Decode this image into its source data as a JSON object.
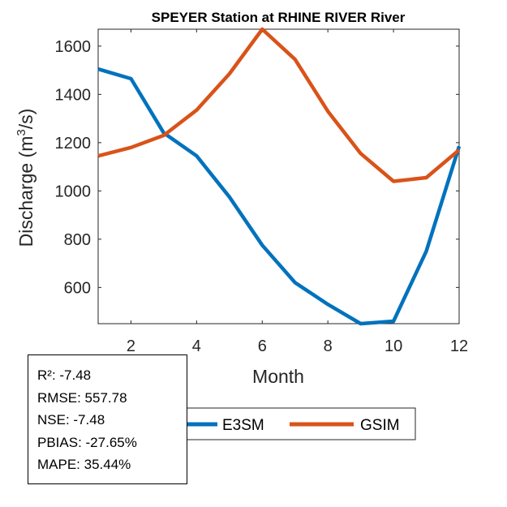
{
  "chart_data": {
    "type": "line",
    "title": "SPEYER  Station at  RHINE RIVER  River",
    "xlabel": "Month",
    "ylabel": "Discharge (m",
    "ylabel_sup": "3",
    "ylabel_tail": "/s)",
    "xlim": [
      1,
      12
    ],
    "ylim": [
      450,
      1670
    ],
    "xticks": [
      2,
      4,
      6,
      8,
      10,
      12
    ],
    "yticks": [
      600,
      800,
      1000,
      1200,
      1400,
      1600
    ],
    "x": [
      1,
      2,
      3,
      4,
      5,
      6,
      7,
      8,
      9,
      10,
      11,
      12
    ],
    "series": [
      {
        "name": "E3SM",
        "color": "#0072BD",
        "values": [
          1505,
          1465,
          1240,
          1145,
          975,
          775,
          620,
          530,
          450,
          460,
          750,
          1185
        ]
      },
      {
        "name": "GSIM",
        "color": "#D95319",
        "values": [
          1145,
          1180,
          1230,
          1335,
          1485,
          1670,
          1545,
          1330,
          1155,
          1040,
          1055,
          1170
        ]
      }
    ],
    "legend": [
      "E3SM",
      "GSIM"
    ],
    "legend_position": "bottom-center"
  },
  "stats": {
    "r2": "R²: -7.48",
    "rmse": "RMSE: 557.78",
    "nse": "NSE: -7.48",
    "pbias": "PBIAS: -27.65%",
    "mape": "MAPE: 35.44%"
  }
}
